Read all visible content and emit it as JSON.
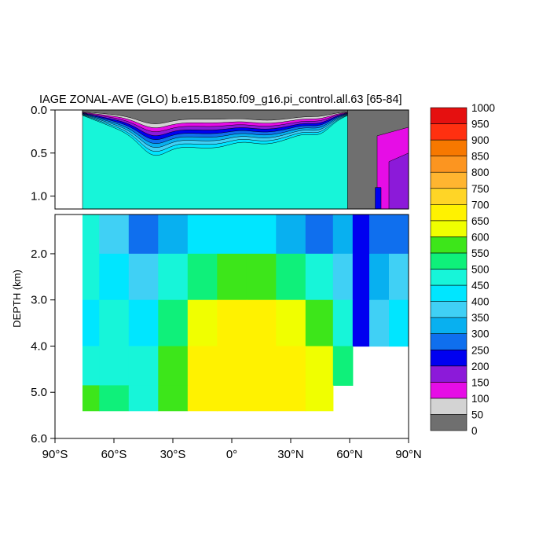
{
  "chart_data": {
    "type": "heatmap",
    "title": "IAGE ZONAL-AVE (GLO) b.e15.B1850.f09_g16.pi_control.all.63 [65-84]",
    "ylabel": "DEPTH (km)",
    "xlabel": "",
    "xlim": [
      -90,
      90
    ],
    "ylim_top_panel": [
      0.0,
      1.15
    ],
    "ylim_bottom_panel": [
      1.15,
      6.0
    ],
    "x_ticks": [
      {
        "value": -90,
        "label": "90°S"
      },
      {
        "value": -60,
        "label": "60°S"
      },
      {
        "value": -30,
        "label": "30°S"
      },
      {
        "value": 0,
        "label": "0°"
      },
      {
        "value": 30,
        "label": "30°N"
      },
      {
        "value": 60,
        "label": "60°N"
      },
      {
        "value": 90,
        "label": "90°N"
      }
    ],
    "y_ticks_top": [
      {
        "value": 0.0,
        "label": "0.0"
      },
      {
        "value": 0.5,
        "label": "0.5"
      },
      {
        "value": 1.0,
        "label": "1.0"
      }
    ],
    "y_ticks_bottom": [
      {
        "value": 2.0,
        "label": "2.0"
      },
      {
        "value": 3.0,
        "label": "3.0"
      },
      {
        "value": 4.0,
        "label": "4.0"
      },
      {
        "value": 5.0,
        "label": "5.0"
      },
      {
        "value": 6.0,
        "label": "6.0"
      }
    ],
    "colorbar": {
      "levels": [
        0,
        50,
        100,
        150,
        200,
        250,
        300,
        350,
        400,
        450,
        500,
        550,
        600,
        650,
        700,
        750,
        800,
        850,
        900,
        950,
        1000
      ],
      "colors": [
        "#6f6f6f",
        "#d3d3d3",
        "#e60de6",
        "#8c1ad9",
        "#0000f0",
        "#0f6fee",
        "#08b0f0",
        "#40d0f5",
        "#00e6ff",
        "#17f5d9",
        "#0ff07a",
        "#3de61a",
        "#f0ff00",
        "#fff200",
        "#ffd526",
        "#ffb530",
        "#fc9520",
        "#f77800",
        "#ff3010",
        "#e51010"
      ]
    },
    "bottom_panel_values": {
      "latitudes": [
        -75,
        -60,
        -45,
        -30,
        -15,
        0,
        15,
        30,
        45,
        58,
        65,
        75,
        85
      ],
      "depths_km": [
        1.5,
        2.5,
        3.5,
        4.5,
        5.2
      ],
      "values": [
        [
          460,
          350,
          260,
          320,
          400,
          420,
          400,
          330,
          280,
          300,
          200,
          250,
          280
        ],
        [
          460,
          430,
          380,
          460,
          520,
          570,
          570,
          520,
          450,
          380,
          200,
          300,
          350
        ],
        [
          440,
          460,
          440,
          540,
          620,
          660,
          660,
          620,
          560,
          470,
          230,
          380,
          420
        ],
        [
          480,
          480,
          460,
          560,
          650,
          680,
          680,
          650,
          600,
          520,
          0,
          0,
          0
        ],
        [
          560,
          520,
          480,
          580,
          660,
          690,
          690,
          660,
          620,
          0,
          0,
          0,
          0
        ]
      ]
    }
  }
}
